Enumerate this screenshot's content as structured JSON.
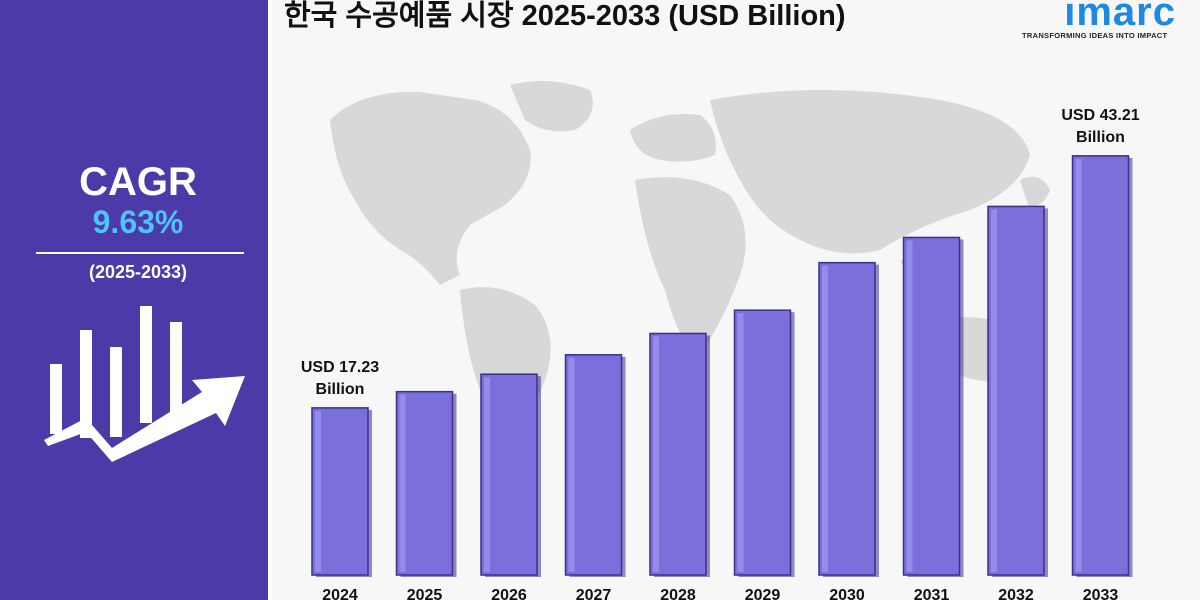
{
  "sidebar": {
    "cagr_label": "CAGR",
    "cagr_value": "9.63%",
    "period": "(2025-2033)"
  },
  "header": {
    "title": "한국 수공예품 시장 2025-2033 (USD Billion)"
  },
  "logo": {
    "wordmark": "imarc",
    "tagline": "TRANSFORMING IDEAS INTO IMPACT"
  },
  "colors": {
    "sidebar": "#4b3aa8",
    "bar_fill": "#7b6fdc",
    "bar_edge": "#3b2f8f",
    "accent": "#4fc3f7",
    "logo": "#1e88e5"
  },
  "icons": {
    "growth": "bar-chart-arrow-icon",
    "background": "world-map-icon"
  },
  "chart_data": {
    "type": "bar",
    "title": "한국 수공예품 시장 2025-2033 (USD Billion)",
    "categories": [
      "2024",
      "2025",
      "2026",
      "2027",
      "2028",
      "2029",
      "2030",
      "2031",
      "2032",
      "2033"
    ],
    "values": [
      17.23,
      18.9,
      20.7,
      22.7,
      24.9,
      27.3,
      32.2,
      34.8,
      38.0,
      43.21
    ],
    "data_labels": [
      {
        "category": "2024",
        "line1": "USD 17.23",
        "line2": "Billion"
      },
      {
        "category": "2033",
        "line1": "USD 43.21",
        "line2": "Billion"
      }
    ],
    "ylim": [
      0,
      48
    ],
    "grid": false,
    "legend": "none"
  }
}
